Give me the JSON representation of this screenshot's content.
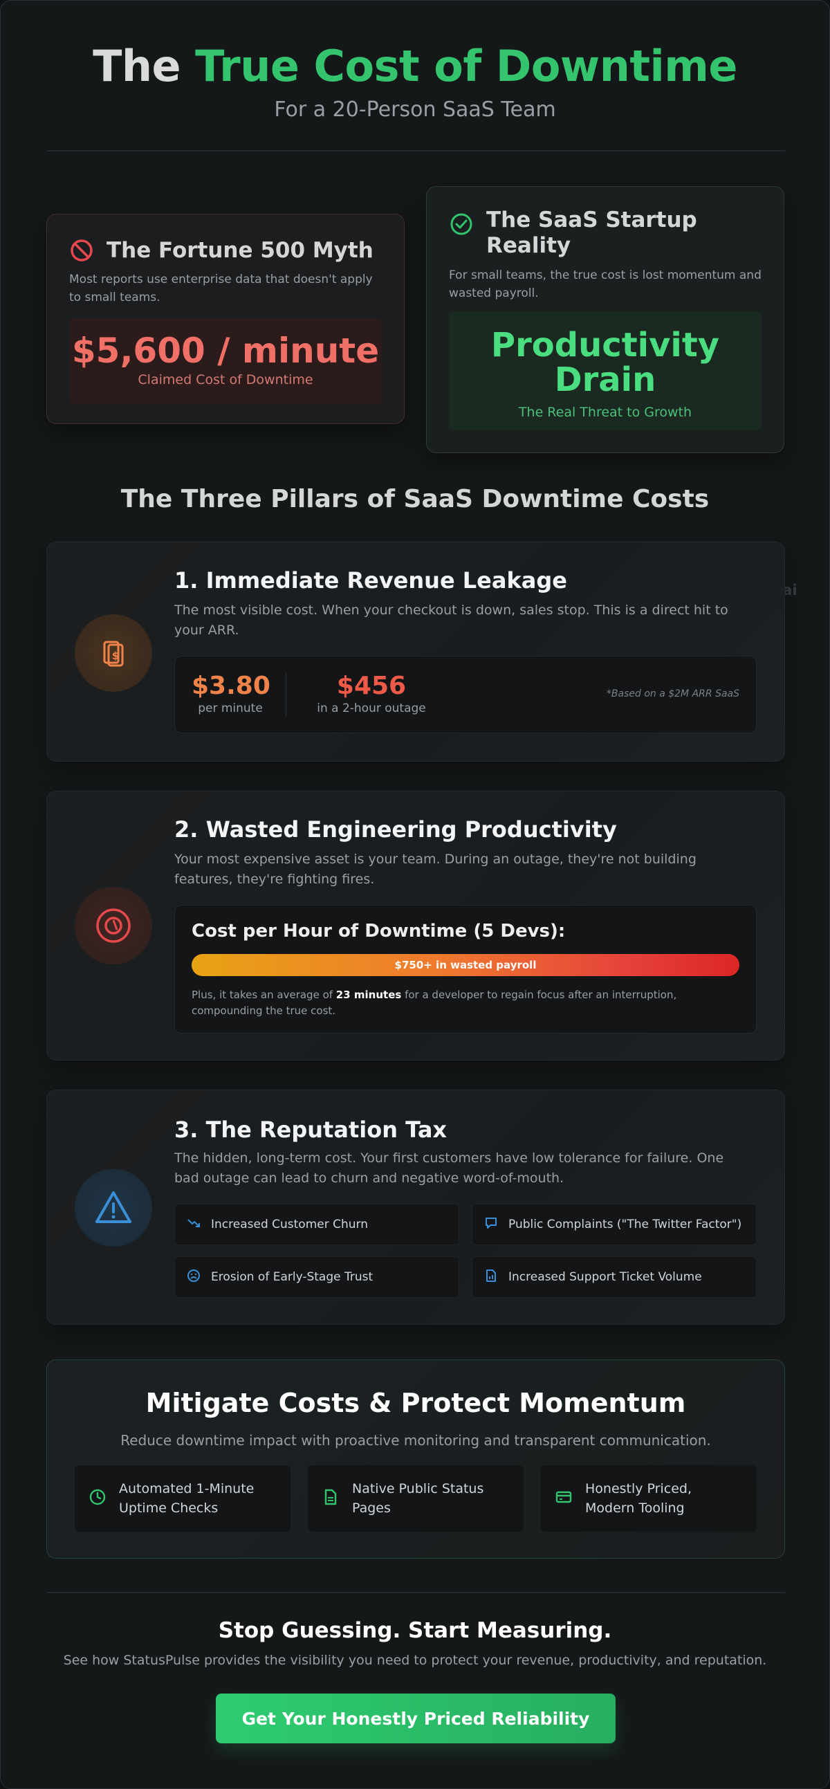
{
  "header": {
    "title_prefix": "The",
    "title_accent": "True Cost of Downtime",
    "subtitle": "For a 20-Person SaaS Team"
  },
  "myth_card": {
    "title": "The Fortune 500 Myth",
    "description": "Most reports use enterprise data that doesn't apply to small teams.",
    "value": "$5,600 / minute",
    "caption": "Claimed Cost of Downtime",
    "icon": "ban-icon"
  },
  "reality_card": {
    "title_line1": "The SaaS Startup",
    "title_line2": "Reality",
    "description": "For small teams, the true cost is lost momentum and wasted payroll.",
    "value_line1": "Productivity",
    "value_line2": "Drain",
    "caption": "The Real Threat to Growth",
    "icon": "check-circle-icon"
  },
  "pillars_section": {
    "title": "The Three Pillars of SaaS Downtime Costs",
    "watermark": "e.ai"
  },
  "pillar1": {
    "title": "1. Immediate Revenue Leakage",
    "description": "The most visible cost. When your checkout is down, sales stop. This is a direct hit to your ARR.",
    "stat1_value": "$3.80",
    "stat1_label": "per minute",
    "stat2_value": "$456",
    "stat2_label": "in a 2-hour outage",
    "footnote": "*Based on a $2M ARR SaaS",
    "icon": "money-icon"
  },
  "pillar2": {
    "title": "2. Wasted Engineering Productivity",
    "description": "Your most expensive asset is your team. During an outage, they're not building features, they're fighting fires.",
    "cost_title": "Cost per Hour of Downtime (5 Devs):",
    "bar_label": "$750+ in wasted payroll",
    "note_before": "Plus, it takes an average of ",
    "note_bold": "23 minutes",
    "note_after": " for a developer to regain focus after an interruption, compounding the true cost.",
    "icon": "clock-dollar-icon"
  },
  "pillar3": {
    "title": "3. The Reputation Tax",
    "description": "The hidden, long-term cost. Your first customers have low tolerance for failure. One bad outage can lead to churn and negative word-of-mouth.",
    "items": [
      {
        "label": "Increased Customer Churn",
        "icon": "trend-down-icon"
      },
      {
        "label": "Public Complaints (\"The Twitter Factor\")",
        "icon": "message-icon"
      },
      {
        "label": "Erosion of Early-Stage Trust",
        "icon": "frown-icon"
      },
      {
        "label": "Increased Support Ticket Volume",
        "icon": "chart-file-icon"
      }
    ],
    "icon": "warning-icon"
  },
  "mitigate": {
    "title": "Mitigate Costs & Protect Momentum",
    "subtitle": "Reduce downtime impact with proactive monitoring and transparent communication.",
    "features": [
      {
        "label": "Automated 1-Minute Uptime Checks",
        "icon": "clock-icon"
      },
      {
        "label": "Native Public Status Pages",
        "icon": "document-icon"
      },
      {
        "label": "Honestly Priced, Modern Tooling",
        "icon": "credit-card-icon"
      }
    ]
  },
  "cta": {
    "title": "Stop Guessing. Start Measuring.",
    "subtitle": "See how StatusPulse provides the visibility you need to protect your revenue, productivity, and reputation.",
    "button_label": "Get Your Honestly Priced Reliability"
  },
  "colors": {
    "accent_green": "#34c46e",
    "danger_red": "#f07068",
    "orange": "#f0834a",
    "blue": "#3b8fd8"
  }
}
